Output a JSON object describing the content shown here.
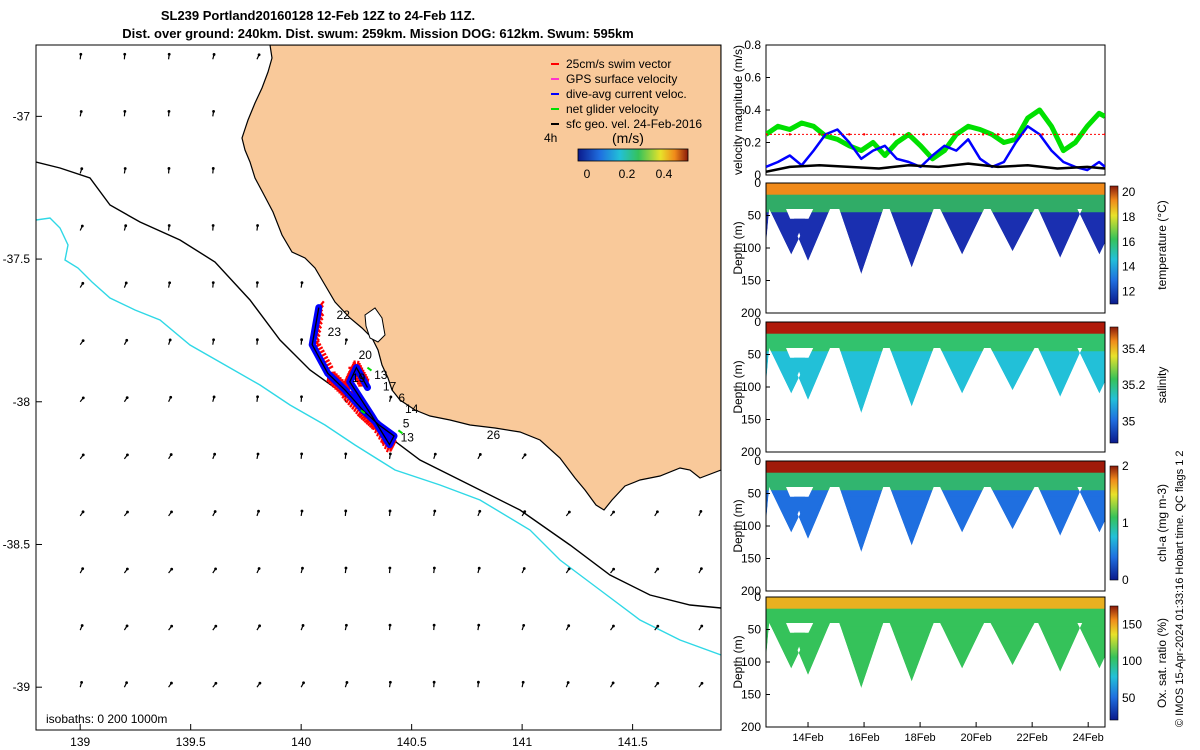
{
  "title": {
    "line1": "SL239 Portland20160128 12-Feb 12Z to 24-Feb 11Z.",
    "line2": "Dist. over ground: 240km. Dist. swum: 259km. Mission DOG: 612km. Swum: 595km"
  },
  "credit": "© IMOS 15-Apr-2024 01:33:16 Hobart time. QC flags 1  2",
  "colors": {
    "land": "#F9C99A",
    "coast": "#000000",
    "isobath_200": "#000000",
    "isobath_1000": "#2FD8E6",
    "swim": "#FF0000",
    "gps": "#FF33CC",
    "current": "#0000FF",
    "net": "#00E000",
    "geo": "#000000"
  },
  "chart_data": [
    {
      "type": "map",
      "name": "glider track map",
      "xlim": [
        138.8,
        141.9
      ],
      "ylim": [
        -39.15,
        -36.75
      ],
      "xticks": [
        139,
        139.5,
        140,
        140.5,
        141,
        141.5
      ],
      "yticks": [
        -37,
        -37.5,
        -38,
        -38.5,
        -39
      ],
      "xtick_labels": [
        "139",
        "139.5",
        "140",
        "140.5",
        "141",
        "141.5"
      ],
      "ytick_labels": [
        "-37",
        "-37.5",
        "-38",
        "-38.5",
        "-39"
      ],
      "legend": {
        "placement": "top-right",
        "items": [
          {
            "label": "25cm/s swim vector",
            "color": "#FF0000"
          },
          {
            "label": "GPS surface velocity",
            "color": "#FF33CC"
          },
          {
            "label": "dive-avg current veloc.",
            "color": "#0000FF"
          },
          {
            "label": "net glider velocity",
            "color": "#00E000"
          },
          {
            "label": "sfc geo. vel. 24-Feb-2016",
            "color": "#000000"
          }
        ]
      },
      "colorbar": {
        "label": "(m/s)",
        "ticks": [
          "0",
          "0.2",
          "0.4"
        ],
        "range": [
          -0.05,
          0.55
        ],
        "time_label": "4h"
      },
      "isobath_label": "isobaths: 0   200  1000m",
      "track": [
        [
          140.08,
          -37.67
        ],
        [
          140.05,
          -37.8
        ],
        [
          140.12,
          -37.9
        ],
        [
          140.2,
          -37.96
        ],
        [
          140.28,
          -38.03
        ],
        [
          140.35,
          -38.08
        ],
        [
          140.42,
          -38.12
        ],
        [
          140.4,
          -38.15
        ],
        [
          140.32,
          -38.05
        ],
        [
          140.22,
          -37.93
        ],
        [
          140.25,
          -37.88
        ],
        [
          140.3,
          -37.95
        ]
      ],
      "day_labels": [
        {
          "text": "22",
          "lon": 140.16,
          "lat": -37.71
        },
        {
          "text": "23",
          "lon": 140.12,
          "lat": -37.77
        },
        {
          "text": "20",
          "lon": 140.26,
          "lat": -37.85
        },
        {
          "text": "13",
          "lon": 140.33,
          "lat": -37.92
        },
        {
          "text": "19",
          "lon": 140.23,
          "lat": -37.93
        },
        {
          "text": "17",
          "lon": 140.37,
          "lat": -37.96
        },
        {
          "text": "6",
          "lon": 140.44,
          "lat": -38.0
        },
        {
          "text": "14",
          "lon": 140.47,
          "lat": -38.04
        },
        {
          "text": "5",
          "lon": 140.46,
          "lat": -38.09
        },
        {
          "text": "13",
          "lon": 140.45,
          "lat": -38.14
        },
        {
          "text": "26",
          "lon": 140.84,
          "lat": -38.13
        }
      ]
    },
    {
      "type": "line",
      "name": "velocity magnitude",
      "ylabel": "velocity magnitude (m/s)",
      "ylim": [
        0,
        0.8
      ],
      "yticks": [
        "0",
        "0.2",
        "0.4",
        "0.6",
        "0.8"
      ],
      "xlim": [
        13.2,
        24.6
      ],
      "series": [
        {
          "name": "net glider velocity",
          "color": "#00E000",
          "x": [
            13.2,
            13.6,
            14.0,
            14.4,
            14.8,
            15.2,
            15.6,
            16.0,
            16.4,
            16.8,
            17.2,
            17.6,
            18.0,
            18.4,
            18.8,
            19.2,
            19.6,
            20.0,
            20.4,
            20.8,
            21.2,
            21.6,
            22.0,
            22.4,
            22.8,
            23.2,
            23.6,
            24.0,
            24.4,
            24.6
          ],
          "y": [
            0.25,
            0.3,
            0.28,
            0.32,
            0.3,
            0.24,
            0.22,
            0.18,
            0.15,
            0.2,
            0.12,
            0.2,
            0.25,
            0.18,
            0.1,
            0.15,
            0.25,
            0.3,
            0.28,
            0.25,
            0.2,
            0.22,
            0.35,
            0.4,
            0.3,
            0.15,
            0.2,
            0.3,
            0.38,
            0.36
          ]
        },
        {
          "name": "dive-avg current veloc.",
          "color": "#0000FF",
          "x": [
            13.2,
            13.6,
            14.0,
            14.4,
            14.8,
            15.2,
            15.6,
            16.0,
            16.4,
            16.8,
            17.2,
            17.6,
            18.0,
            18.4,
            18.8,
            19.2,
            19.6,
            20.0,
            20.4,
            20.8,
            21.2,
            21.6,
            22.0,
            22.4,
            22.8,
            23.2,
            23.6,
            24.0,
            24.4,
            24.6
          ],
          "y": [
            0.05,
            0.08,
            0.12,
            0.06,
            0.15,
            0.25,
            0.28,
            0.2,
            0.1,
            0.15,
            0.18,
            0.1,
            0.08,
            0.05,
            0.12,
            0.18,
            0.15,
            0.22,
            0.1,
            0.05,
            0.08,
            0.2,
            0.3,
            0.25,
            0.15,
            0.08,
            0.05,
            0.03,
            0.08,
            0.05
          ]
        },
        {
          "name": "GPS surface velocity",
          "color": "#FF0000",
          "x": [
            13.2,
            14.0,
            15.0,
            16.0,
            16.5,
            17.5,
            18.5,
            19.5,
            20.5,
            21.0,
            21.5,
            22.5,
            23.5,
            24.6
          ],
          "y": [
            0.25,
            0.25,
            0.25,
            0.25,
            0.25,
            0.25,
            0.25,
            0.25,
            0.25,
            0.25,
            0.25,
            0.25,
            0.25,
            0.25
          ]
        },
        {
          "name": "sfc geo. vel.",
          "color": "#000000",
          "x": [
            13.2,
            14.0,
            15.0,
            16.0,
            17.0,
            18.0,
            19.0,
            20.0,
            21.0,
            22.0,
            23.0,
            24.0,
            24.6
          ],
          "y": [
            0.02,
            0.05,
            0.06,
            0.05,
            0.04,
            0.06,
            0.05,
            0.07,
            0.05,
            0.06,
            0.04,
            0.05,
            0.04
          ]
        }
      ]
    },
    {
      "type": "heatmap",
      "name": "temperature section",
      "ylabel": "Depth (m)",
      "cbar_label": "temperature (°C)",
      "yticks": [
        "0",
        "50",
        "100",
        "150",
        "200"
      ],
      "cbar_ticks": [
        "12",
        "14",
        "16",
        "18",
        "20"
      ],
      "cbar_range": [
        11,
        20.5
      ]
    },
    {
      "type": "heatmap",
      "name": "salinity section",
      "ylabel": "Depth (m)",
      "cbar_label": "salinity",
      "yticks": [
        "0",
        "50",
        "100",
        "150",
        "200"
      ],
      "cbar_ticks": [
        "35",
        "35.2",
        "35.4"
      ],
      "cbar_range": [
        34.88,
        35.52
      ]
    },
    {
      "type": "heatmap",
      "name": "chlorophyll section",
      "ylabel": "Depth (m)",
      "cbar_label": "chl-a (mg m-3)",
      "yticks": [
        "0",
        "50",
        "100",
        "150",
        "200"
      ],
      "cbar_ticks": [
        "0",
        "1",
        "2"
      ],
      "cbar_range": [
        0,
        2
      ]
    },
    {
      "type": "heatmap",
      "name": "oxygen saturation section",
      "ylabel": "Depth (m)",
      "cbar_label": "Ox. sat. ratio (%)",
      "yticks": [
        "0",
        "50",
        "100",
        "150",
        "200"
      ],
      "cbar_ticks": [
        "50",
        "100",
        "150"
      ],
      "cbar_range": [
        20,
        175
      ],
      "xtick_labels": [
        "14Feb",
        "16Feb",
        "18Feb",
        "20Feb",
        "22Feb",
        "24Feb"
      ],
      "xticks": [
        14,
        16,
        18,
        20,
        22,
        24
      ],
      "xlim": [
        12.5,
        24.6
      ]
    }
  ]
}
